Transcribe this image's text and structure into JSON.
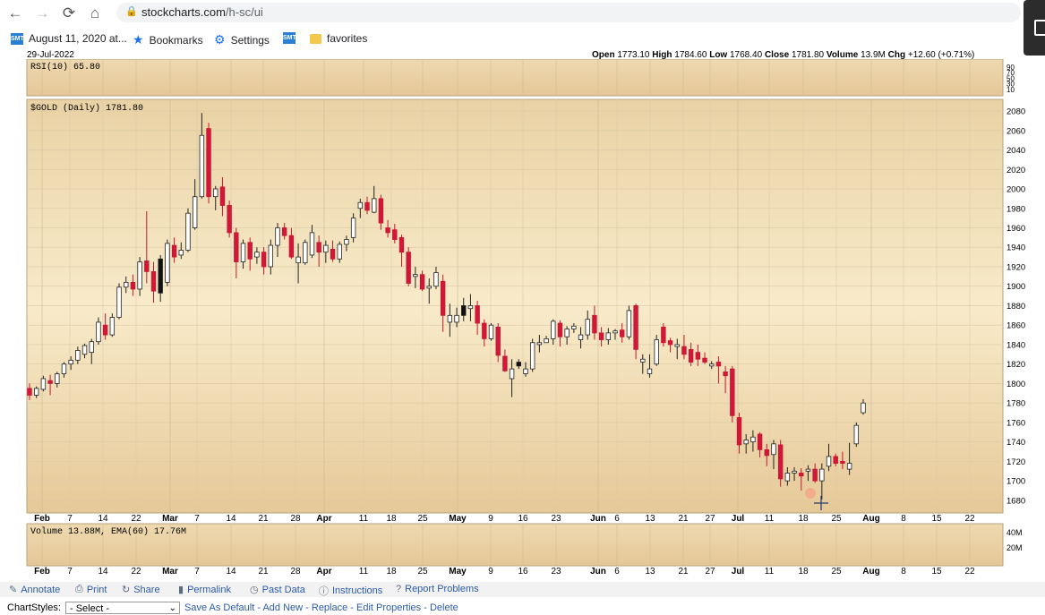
{
  "browser": {
    "nav_back": "←",
    "nav_forward": "→",
    "nav_reload": "⟳",
    "nav_home": "⌂",
    "url_host": "stockcharts.com",
    "url_path": "/h-sc/ui",
    "bookmarks": [
      {
        "label": "August 11, 2020 at...",
        "icon": "smt-icon"
      },
      {
        "label": "Bookmarks",
        "icon": "star-icon"
      },
      {
        "label": "Settings",
        "icon": "gear-icon"
      },
      {
        "label": "",
        "icon": "smt-icon"
      },
      {
        "label": "favorites",
        "icon": "folder-icon"
      }
    ]
  },
  "chart_header": {
    "date": "29-Jul-2022",
    "open_label": "Open",
    "open": "1773.10",
    "high_label": "High",
    "high": "1784.60",
    "low_label": "Low",
    "low": "1768.40",
    "close_label": "Close",
    "close": "1781.80",
    "volume_label": "Volume",
    "volume": "13.9M",
    "chg_label": "Chg",
    "chg": "+12.60 (+0.71%)"
  },
  "rsi_panel": {
    "label": "RSI(10) 65.80",
    "ticks": [
      "90",
      "70",
      "50",
      "30",
      "10"
    ]
  },
  "price_panel": {
    "label": "$GOLD (Daily) 1781.80"
  },
  "volume_panel": {
    "label": "Volume 13.88M, EMA(60) 17.76M",
    "ticks": [
      "40M",
      "20M"
    ]
  },
  "x_axis_labels": [
    {
      "text": "Feb",
      "bold": true
    },
    {
      "text": "7"
    },
    {
      "text": "14"
    },
    {
      "text": "22"
    },
    {
      "text": "Mar",
      "bold": true
    },
    {
      "text": "7"
    },
    {
      "text": "14"
    },
    {
      "text": "21"
    },
    {
      "text": "28"
    },
    {
      "text": "Apr",
      "bold": true
    },
    {
      "text": "11"
    },
    {
      "text": "18"
    },
    {
      "text": "25"
    },
    {
      "text": "May",
      "bold": true
    },
    {
      "text": "9"
    },
    {
      "text": "16"
    },
    {
      "text": "23"
    },
    {
      "text": "Jun",
      "bold": true
    },
    {
      "text": "6"
    },
    {
      "text": "13"
    },
    {
      "text": "21"
    },
    {
      "text": "27"
    },
    {
      "text": "Jul",
      "bold": true
    },
    {
      "text": "11"
    },
    {
      "text": "18"
    },
    {
      "text": "25"
    },
    {
      "text": "Aug",
      "bold": true
    },
    {
      "text": "8"
    },
    {
      "text": "15"
    },
    {
      "text": "22"
    }
  ],
  "toolbar": {
    "annotate": "Annotate",
    "print": "Print",
    "share": "Share",
    "permalink": "Permalink",
    "past_data": "Past Data",
    "instructions": "Instructions",
    "report_problems": "Report Problems"
  },
  "chartstyles": {
    "label": "ChartStyles:",
    "select_value": "- Select -",
    "save_default": "Save As Default",
    "add_new": "Add New",
    "replace": "Replace",
    "edit_properties": "Edit Properties",
    "delete": "Delete",
    "separator": " - "
  },
  "colors": {
    "up": "#ffffff",
    "down": "#d2183a",
    "panel_top": "#e6cfa3",
    "panel_mid": "#f6e8c6",
    "grid": "#c9b99a"
  },
  "chart_data": {
    "type": "candlestick",
    "title": "$GOLD (Daily) 1781.80",
    "y_ticks": [
      1680,
      1700,
      1720,
      1740,
      1760,
      1780,
      1800,
      1820,
      1840,
      1860,
      1880,
      1900,
      1920,
      1940,
      1960,
      1980,
      2000,
      2020,
      2040,
      2060,
      2080
    ],
    "ylim": [
      1667,
      2092
    ],
    "grid": true,
    "candles": [
      [
        1795,
        1800,
        1783,
        1788,
        "d"
      ],
      [
        1788,
        1797,
        1785,
        1795,
        "u"
      ],
      [
        1794,
        1808,
        1792,
        1805,
        "u"
      ],
      [
        1803,
        1809,
        1788,
        1800,
        "d"
      ],
      [
        1800,
        1812,
        1796,
        1810,
        "u"
      ],
      [
        1810,
        1822,
        1806,
        1820,
        "u"
      ],
      [
        1820,
        1828,
        1814,
        1824,
        "u"
      ],
      [
        1824,
        1838,
        1820,
        1834,
        "u"
      ],
      [
        1830,
        1841,
        1826,
        1839,
        "u"
      ],
      [
        1832,
        1846,
        1820,
        1843,
        "u"
      ],
      [
        1843,
        1868,
        1840,
        1863,
        "u"
      ],
      [
        1860,
        1872,
        1845,
        1850,
        "d"
      ],
      [
        1850,
        1872,
        1848,
        1868,
        "u"
      ],
      [
        1868,
        1903,
        1866,
        1899,
        "u"
      ],
      [
        1899,
        1910,
        1893,
        1904,
        "u"
      ],
      [
        1904,
        1912,
        1890,
        1897,
        "d"
      ],
      [
        1897,
        1930,
        1890,
        1925,
        "u"
      ],
      [
        1926,
        1977,
        1903,
        1915,
        "d"
      ],
      [
        1915,
        1925,
        1883,
        1895,
        "d"
      ],
      [
        1893,
        1932,
        1884,
        1928,
        "b"
      ],
      [
        1904,
        1948,
        1900,
        1944,
        "u"
      ],
      [
        1942,
        1950,
        1924,
        1930,
        "d"
      ],
      [
        1932,
        1945,
        1928,
        1937,
        "u"
      ],
      [
        1937,
        1980,
        1935,
        1975,
        "u"
      ],
      [
        1960,
        2010,
        1958,
        1992,
        "u"
      ],
      [
        1992,
        2078,
        1990,
        2055,
        "u"
      ],
      [
        2062,
        2068,
        1985,
        1992,
        "d"
      ],
      [
        1992,
        2003,
        1978,
        2000,
        "u"
      ],
      [
        2002,
        2012,
        1972,
        1983,
        "d"
      ],
      [
        1983,
        1988,
        1950,
        1955,
        "d"
      ],
      [
        1955,
        1960,
        1908,
        1925,
        "d"
      ],
      [
        1925,
        1948,
        1918,
        1944,
        "u"
      ],
      [
        1945,
        1950,
        1916,
        1928,
        "d"
      ],
      [
        1930,
        1940,
        1923,
        1935,
        "u"
      ],
      [
        1935,
        1940,
        1912,
        1920,
        "d"
      ],
      [
        1920,
        1948,
        1912,
        1942,
        "u"
      ],
      [
        1942,
        1965,
        1930,
        1960,
        "u"
      ],
      [
        1960,
        1965,
        1948,
        1952,
        "d"
      ],
      [
        1952,
        1960,
        1928,
        1930,
        "d"
      ],
      [
        1930,
        1944,
        1903,
        1924,
        "u"
      ],
      [
        1924,
        1948,
        1922,
        1945,
        "u"
      ],
      [
        1932,
        1963,
        1929,
        1955,
        "u"
      ],
      [
        1945,
        1952,
        1920,
        1935,
        "d"
      ],
      [
        1935,
        1947,
        1924,
        1942,
        "u"
      ],
      [
        1938,
        1947,
        1925,
        1928,
        "d"
      ],
      [
        1928,
        1946,
        1924,
        1943,
        "u"
      ],
      [
        1943,
        1952,
        1936,
        1948,
        "u"
      ],
      [
        1950,
        1975,
        1945,
        1970,
        "u"
      ],
      [
        1980,
        1990,
        1970,
        1986,
        "u"
      ],
      [
        1986,
        1992,
        1974,
        1978,
        "d"
      ],
      [
        1976,
        2003,
        1975,
        1990,
        "u"
      ],
      [
        1990,
        1994,
        1958,
        1965,
        "d"
      ],
      [
        1960,
        1968,
        1950,
        1955,
        "d"
      ],
      [
        1958,
        1964,
        1944,
        1948,
        "d"
      ],
      [
        1950,
        1953,
        1920,
        1935,
        "d"
      ],
      [
        1935,
        1940,
        1900,
        1903,
        "d"
      ],
      [
        1910,
        1920,
        1898,
        1912,
        "u"
      ],
      [
        1912,
        1916,
        1895,
        1897,
        "d"
      ],
      [
        1898,
        1908,
        1882,
        1900,
        "u"
      ],
      [
        1900,
        1920,
        1897,
        1914,
        "u"
      ],
      [
        1905,
        1912,
        1853,
        1870,
        "d"
      ],
      [
        1870,
        1882,
        1848,
        1863,
        "u"
      ],
      [
        1863,
        1878,
        1858,
        1870,
        "u"
      ],
      [
        1870,
        1888,
        1864,
        1880,
        "b"
      ],
      [
        1880,
        1892,
        1864,
        1877,
        "u"
      ],
      [
        1880,
        1885,
        1850,
        1862,
        "d"
      ],
      [
        1862,
        1866,
        1838,
        1846,
        "d"
      ],
      [
        1846,
        1862,
        1844,
        1860,
        "u"
      ],
      [
        1858,
        1862,
        1822,
        1829,
        "d"
      ],
      [
        1828,
        1835,
        1812,
        1813,
        "d"
      ],
      [
        1815,
        1825,
        1786,
        1805,
        "u"
      ],
      [
        1818,
        1825,
        1815,
        1822,
        "b"
      ],
      [
        1810,
        1822,
        1807,
        1815,
        "u"
      ],
      [
        1815,
        1846,
        1812,
        1842,
        "u"
      ],
      [
        1842,
        1850,
        1832,
        1840,
        "u"
      ],
      [
        1842,
        1849,
        1842,
        1846,
        "u"
      ],
      [
        1846,
        1866,
        1840,
        1864,
        "u"
      ],
      [
        1862,
        1865,
        1838,
        1848,
        "d"
      ],
      [
        1848,
        1859,
        1840,
        1856,
        "u"
      ],
      [
        1856,
        1862,
        1852,
        1859,
        "u"
      ],
      [
        1845,
        1858,
        1836,
        1850,
        "u"
      ],
      [
        1850,
        1875,
        1845,
        1866,
        "u"
      ],
      [
        1870,
        1880,
        1845,
        1852,
        "d"
      ],
      [
        1852,
        1858,
        1838,
        1845,
        "d"
      ],
      [
        1845,
        1857,
        1840,
        1852,
        "u"
      ],
      [
        1852,
        1856,
        1845,
        1854,
        "u"
      ],
      [
        1855,
        1862,
        1842,
        1848,
        "d"
      ],
      [
        1848,
        1880,
        1845,
        1875,
        "u"
      ],
      [
        1880,
        1882,
        1825,
        1835,
        "d"
      ],
      [
        1822,
        1830,
        1810,
        1825,
        "u"
      ],
      [
        1815,
        1830,
        1806,
        1810,
        "u"
      ],
      [
        1820,
        1850,
        1818,
        1845,
        "u"
      ],
      [
        1858,
        1862,
        1838,
        1842,
        "d"
      ],
      [
        1844,
        1847,
        1832,
        1840,
        "d"
      ],
      [
        1840,
        1846,
        1825,
        1838,
        "u"
      ],
      [
        1838,
        1850,
        1825,
        1830,
        "d"
      ],
      [
        1835,
        1842,
        1818,
        1822,
        "d"
      ],
      [
        1832,
        1840,
        1818,
        1825,
        "d"
      ],
      [
        1826,
        1832,
        1820,
        1822,
        "d"
      ],
      [
        1820,
        1823,
        1815,
        1818,
        "u"
      ],
      [
        1822,
        1828,
        1800,
        1818,
        "d"
      ],
      [
        1812,
        1818,
        1790,
        1808,
        "d"
      ],
      [
        1815,
        1818,
        1760,
        1767,
        "d"
      ],
      [
        1765,
        1770,
        1728,
        1737,
        "d"
      ],
      [
        1738,
        1748,
        1728,
        1742,
        "u"
      ],
      [
        1740,
        1752,
        1730,
        1745,
        "u"
      ],
      [
        1748,
        1750,
        1724,
        1732,
        "d"
      ],
      [
        1732,
        1738,
        1715,
        1726,
        "d"
      ],
      [
        1727,
        1742,
        1712,
        1738,
        "u"
      ],
      [
        1737,
        1742,
        1694,
        1702,
        "d"
      ],
      [
        1700,
        1714,
        1695,
        1708,
        "u"
      ],
      [
        1708,
        1714,
        1700,
        1710,
        "u"
      ],
      [
        1708,
        1713,
        1690,
        1705,
        "d"
      ],
      [
        1710,
        1716,
        1700,
        1712,
        "u"
      ],
      [
        1712,
        1718,
        1698,
        1700,
        "d"
      ],
      [
        1700,
        1718,
        1681,
        1712,
        "u"
      ],
      [
        1715,
        1738,
        1710,
        1725,
        "u"
      ],
      [
        1725,
        1728,
        1715,
        1718,
        "d"
      ],
      [
        1720,
        1730,
        1712,
        1718,
        "d"
      ],
      [
        1712,
        1739,
        1706,
        1718,
        "u"
      ],
      [
        1738,
        1760,
        1735,
        1757,
        "u"
      ],
      [
        1770,
        1784,
        1768,
        1780,
        "u"
      ]
    ],
    "candle_dates_note": "",
    "volume_ema": "17.76M",
    "volume_last": "13.88M"
  }
}
